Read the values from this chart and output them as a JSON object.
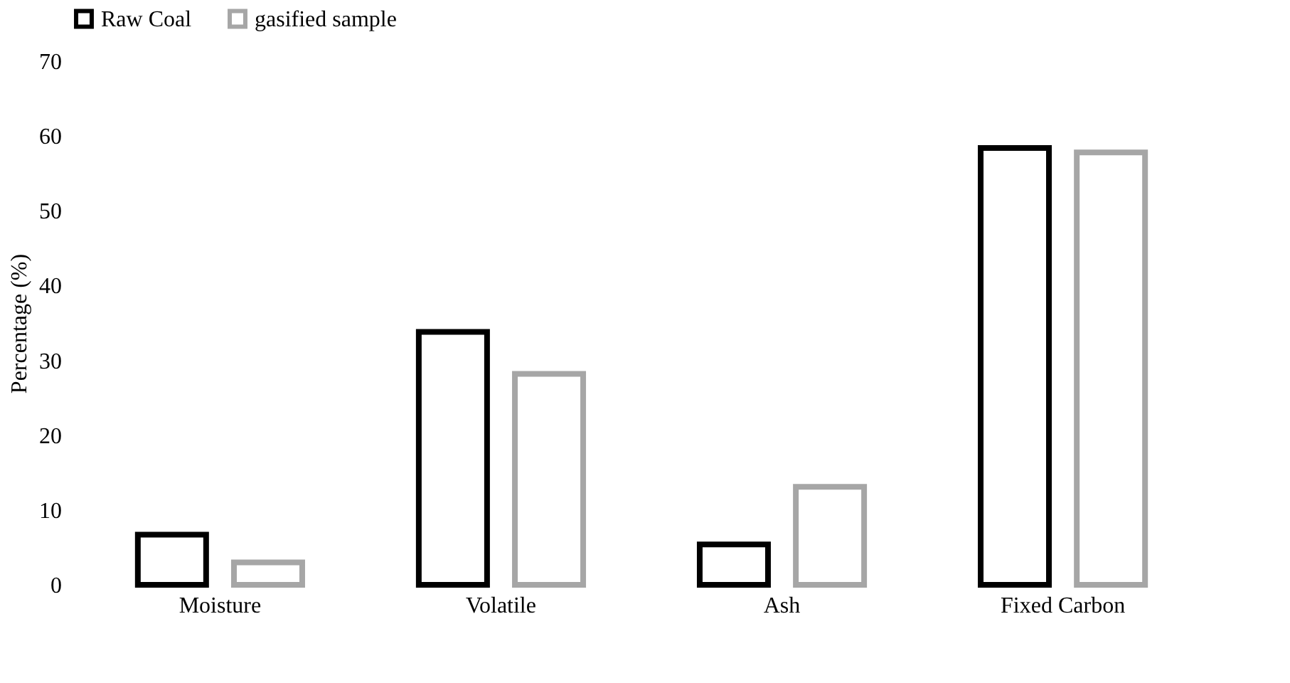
{
  "chart_data": {
    "type": "bar",
    "ylabel": "Percentage (%)",
    "categories": [
      "Moisture",
      "Volatile",
      "Ash",
      "Fixed Carbon"
    ],
    "series": [
      {
        "name": "Raw Coal",
        "color": "#000000",
        "values": [
          6.7,
          33.8,
          5.4,
          58.4
        ]
      },
      {
        "name": "gasified sample",
        "color": "#a6a6a6",
        "values": [
          3.0,
          28.2,
          13.1,
          57.8
        ]
      }
    ],
    "ylim": [
      0,
      70
    ],
    "yticks": [
      0,
      10,
      20,
      30,
      40,
      50,
      60,
      70
    ],
    "grid": false,
    "legend": "top"
  }
}
